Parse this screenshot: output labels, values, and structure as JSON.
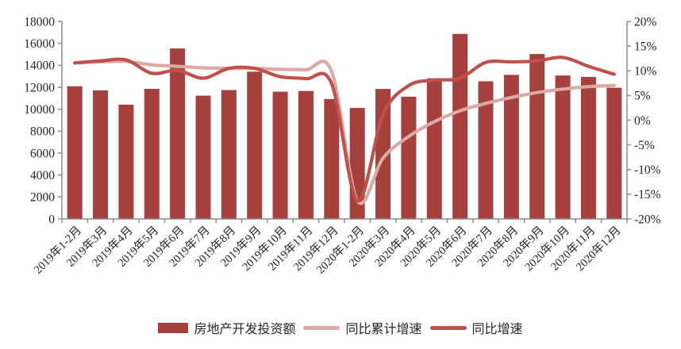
{
  "chart_data": {
    "type": "combo",
    "title": "",
    "categories": [
      "2019年1-2月",
      "2019年3月",
      "2019年4月",
      "2019年5月",
      "2019年6月",
      "2019年7月",
      "2019年8月",
      "2019年9月",
      "2019年10月",
      "2019年11月",
      "2019年12月",
      "2020年1-2月",
      "2020年3月",
      "2020年4月",
      "2020年5月",
      "2020年6月",
      "2020年7月",
      "2020年8月",
      "2020年9月",
      "2020年10月",
      "2020年11月",
      "2020年12月"
    ],
    "series": [
      {
        "name": "房地产开发投资额",
        "type": "bar",
        "axis": "left",
        "color": "#A6403C",
        "values": [
          12090,
          11713,
          10414,
          11858,
          15534,
          11234,
          11746,
          13419,
          11595,
          11662,
          10929,
          10115,
          11848,
          11140,
          12817,
          16860,
          12545,
          13129,
          15030,
          13072,
          12936,
          11951
        ]
      },
      {
        "name": "同比累计增速",
        "type": "line",
        "axis": "right",
        "color": "#DCA9A5",
        "values": [
          11.6,
          11.8,
          11.9,
          11.2,
          10.9,
          10.6,
          10.5,
          10.5,
          10.3,
          10.2,
          9.9,
          -16.3,
          -7.7,
          -3.3,
          -0.3,
          1.9,
          3.4,
          4.6,
          5.6,
          6.3,
          6.8,
          7.0
        ]
      },
      {
        "name": "同比增速",
        "type": "line",
        "axis": "right",
        "color": "#C0504D",
        "values": [
          11.6,
          12.0,
          12.2,
          9.5,
          10.1,
          8.5,
          10.5,
          10.5,
          8.8,
          8.4,
          7.4,
          -16.3,
          1.1,
          7.0,
          8.1,
          8.5,
          11.7,
          11.8,
          12.0,
          12.7,
          10.9,
          9.3
        ]
      }
    ],
    "left_axis": {
      "min": 0,
      "max": 18000,
      "step": 2000,
      "tick_labels": [
        "18000",
        "16000",
        "14000",
        "12000",
        "10000",
        "8000",
        "6000",
        "4000",
        "2000",
        "0"
      ]
    },
    "right_axis": {
      "min": -20,
      "max": 20,
      "step": 5,
      "tick_labels": [
        "20%",
        "15%",
        "10%",
        "5%",
        "0%",
        "-5%",
        "-10%",
        "-15%",
        "-20%"
      ]
    },
    "grid": false,
    "legend_position": "bottom"
  },
  "colors": {
    "axis": "#8C8C8C",
    "text": "#262626",
    "background": "#FFFFFF"
  }
}
